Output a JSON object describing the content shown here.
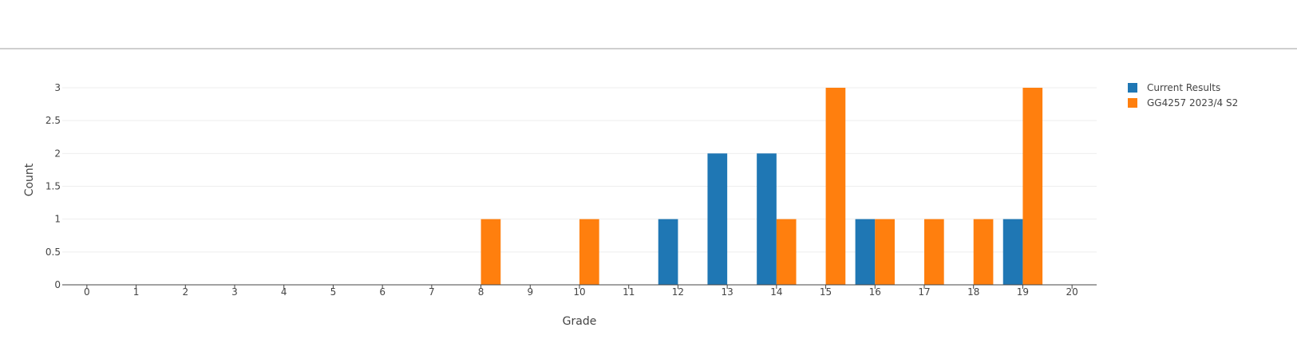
{
  "chart_data": {
    "type": "bar",
    "x": [
      0,
      1,
      2,
      3,
      4,
      5,
      6,
      7,
      8,
      9,
      10,
      11,
      12,
      13,
      14,
      15,
      16,
      17,
      18,
      19,
      20
    ],
    "xlabel": "Grade",
    "ylabel": "Count",
    "ylim": [
      0,
      3
    ],
    "yticks": [
      "0",
      "0.5",
      "1",
      "1.5",
      "2",
      "2.5",
      "3"
    ],
    "grid": true,
    "legend_position": "top-right",
    "series": [
      {
        "name": "Current Results",
        "color": "#1f77b4",
        "values": [
          0,
          0,
          0,
          0,
          0,
          0,
          0,
          0,
          0,
          0,
          0,
          0,
          1,
          2,
          2,
          0,
          1,
          0,
          0,
          1,
          0
        ]
      },
      {
        "name": "GG4257 2023/4 S2",
        "color": "#ff7f0e",
        "values": [
          0,
          0,
          0,
          0,
          0,
          0,
          0,
          0,
          1,
          0,
          1,
          0,
          0,
          0,
          1,
          3,
          1,
          1,
          1,
          3,
          0
        ]
      }
    ]
  }
}
